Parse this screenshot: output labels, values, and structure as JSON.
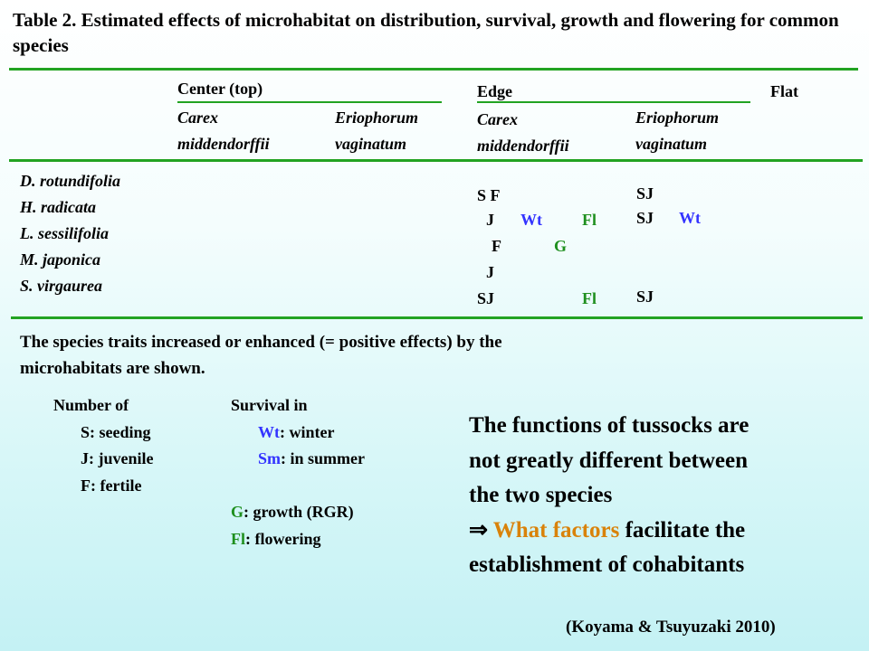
{
  "title": "Table 2. Estimated effects of microhabitat on distribution, survival, growth and flowering for common species",
  "columns": {
    "center": "Center (top)",
    "edge": "Edge",
    "flat": "Flat",
    "carex": [
      "Carex",
      "middendorffii"
    ],
    "eriophorum": [
      "Eriophorum",
      "vaginatum"
    ]
  },
  "species": [
    "D. rotundifolia",
    "H. radicata",
    "L. sessilifolia",
    "M. japonica",
    "S. virgaurea"
  ],
  "edge_carex": [
    {
      "a": "S F",
      "b": "",
      "c": ""
    },
    {
      "a": "J",
      "b": "Wt",
      "c": "Fl"
    },
    {
      "a": "F",
      "b": "G",
      "c": ""
    },
    {
      "a": "J",
      "b": "",
      "c": ""
    },
    {
      "a": "SJ",
      "b": "",
      "c": "Fl"
    }
  ],
  "edge_eriophorum": [
    {
      "a": "SJ",
      "b": ""
    },
    {
      "a": "SJ",
      "b": "Wt"
    },
    {
      "a": "",
      "b": ""
    },
    {
      "a": "",
      "b": ""
    },
    {
      "a": "SJ",
      "b": ""
    }
  ],
  "note": "The species traits increased or enhanced (= positive effects) by the microhabitats are shown.",
  "legend_number": {
    "head": "Number of",
    "items": [
      "S: seeding",
      "J: juvenile",
      "F: fertile"
    ]
  },
  "legend_survival": {
    "head": "Survival in",
    "wt_code": "Wt",
    "wt_text": ": winter",
    "sm_code": "Sm",
    "sm_text": ": in summer",
    "g_code": "G",
    "g_text": ": growth (RGR)",
    "fl_code": "Fl",
    "fl_text": ": flowering"
  },
  "conclusion": {
    "line1": "The functions of tussocks are",
    "line2": "not greatly different between",
    "line3": "the two species",
    "arrow": "⇒ ",
    "highlight": "What factors",
    "line4_rest": " facilitate the",
    "line5": "establishment of cohabitants"
  },
  "citation": "(Koyama & Tsuyuzaki 2010)",
  "colors": {
    "rule": "#22a322",
    "blue": "#3333ff",
    "green": "#1e8f1e",
    "orange": "#d9820a"
  }
}
